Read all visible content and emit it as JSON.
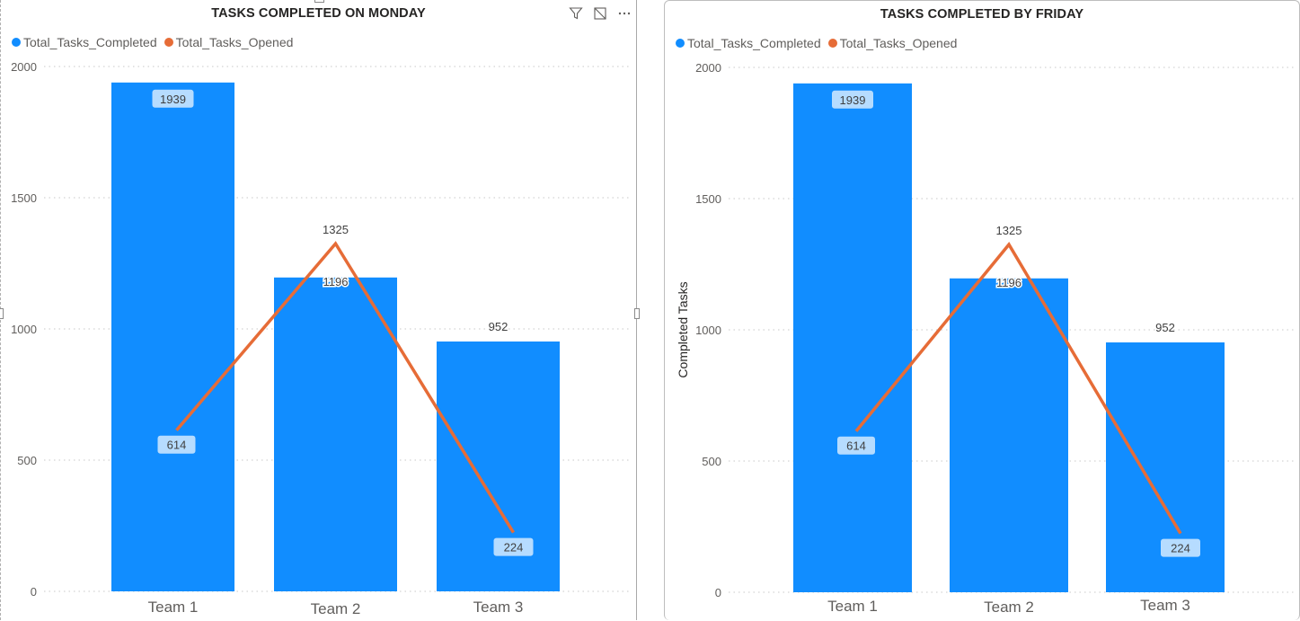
{
  "colors": {
    "bars": "#118dff",
    "line": "#e66c37",
    "grid": "#c8c8c8",
    "label_box": "#b6dcff"
  },
  "icons": {
    "filter": "filter-icon",
    "focus": "focus-mode-icon",
    "more": "more-options-icon"
  },
  "chart_data": [
    {
      "type": "bar",
      "title": "TASKS COMPLETED ON MONDAY",
      "categories": [
        "Team 1",
        "Team 2",
        "Team 3"
      ],
      "series": [
        {
          "name": "Total_Tasks_Completed",
          "type": "bar",
          "values": [
            1939,
            1196,
            952
          ]
        },
        {
          "name": "Total_Tasks_Opened",
          "type": "line",
          "values": [
            614,
            1325,
            224
          ]
        }
      ],
      "xlabel": "",
      "ylabel": "",
      "ylim": [
        0,
        2000
      ],
      "yticks": [
        0,
        500,
        1000,
        1500,
        2000
      ],
      "grid": true,
      "legend": "top-left"
    },
    {
      "type": "bar",
      "title": "TASKS COMPLETED BY FRIDAY",
      "categories": [
        "Team 1",
        "Team 2",
        "Team 3"
      ],
      "series": [
        {
          "name": "Total_Tasks_Completed",
          "type": "bar",
          "values": [
            1939,
            1196,
            952
          ]
        },
        {
          "name": "Total_Tasks_Opened",
          "type": "line",
          "values": [
            614,
            1325,
            224
          ]
        }
      ],
      "xlabel": "",
      "ylabel": "Completed Tasks",
      "ylim": [
        0,
        2000
      ],
      "yticks": [
        0,
        500,
        1000,
        1500,
        2000
      ],
      "grid": true,
      "legend": "top-left"
    }
  ]
}
